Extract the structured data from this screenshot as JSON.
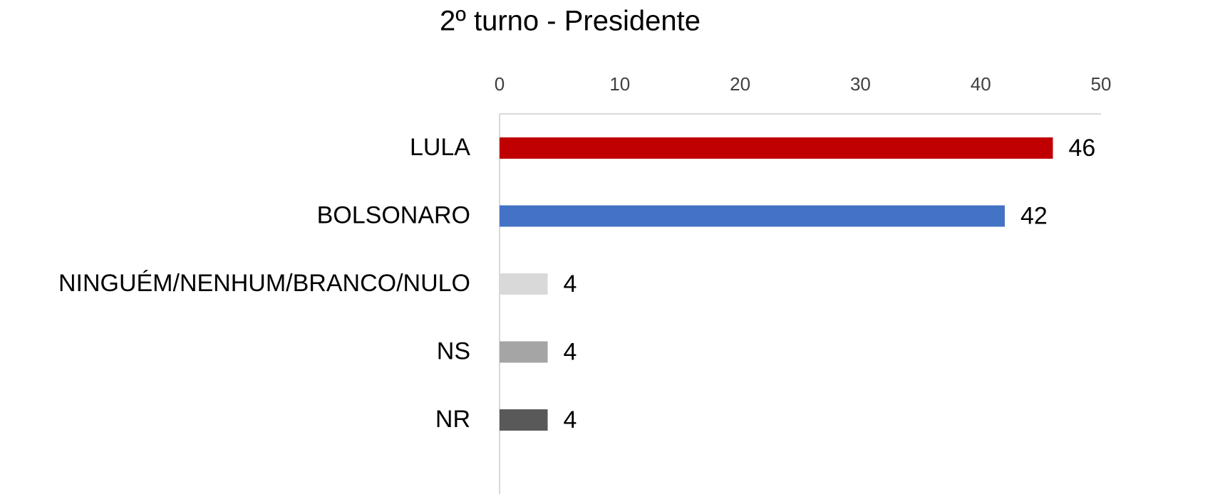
{
  "chart_data": {
    "type": "bar",
    "orientation": "horizontal",
    "title": "2º turno - Presidente",
    "categories": [
      "LULA",
      "BOLSONARO",
      "NINGUÉM/NENHUM/BRANCO/NULO",
      "NS",
      "NR"
    ],
    "values": [
      46,
      42,
      4,
      4,
      4
    ],
    "colors": [
      "#c00000",
      "#4472c4",
      "#d9d9d9",
      "#a5a5a5",
      "#595959"
    ],
    "xlim": [
      0,
      50
    ],
    "xticks": [
      0,
      10,
      20,
      30,
      40,
      50
    ],
    "grid": false
  }
}
